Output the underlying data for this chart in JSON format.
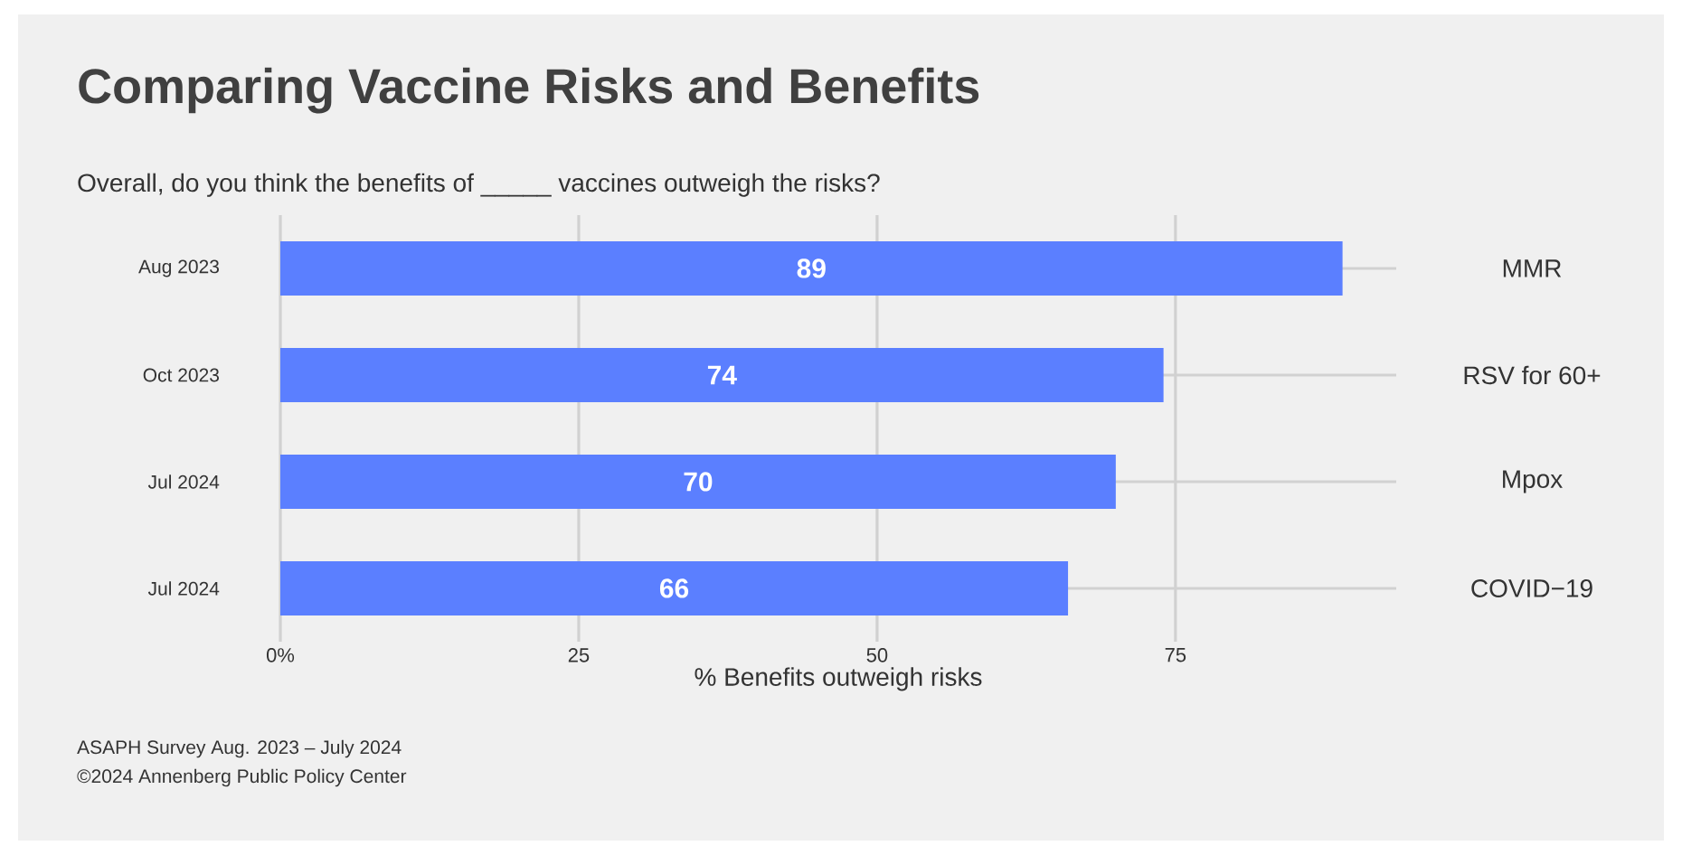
{
  "chart_data": {
    "type": "bar",
    "orientation": "horizontal",
    "title": "Comparing Vaccine Risks and Benefits",
    "subtitle": "Overall, do you think the benefits of _____ vaccines outweigh the risks?",
    "xlabel": "% Benefits outweigh risks",
    "categories": [
      "MMR",
      "RSV for 60+",
      "Mpox",
      "COVID−19"
    ],
    "values": [
      89,
      74,
      70,
      66
    ],
    "color": "#5b7fff",
    "data_labels": true,
    "xlim": [
      0,
      93.5
    ],
    "xticks": [
      {
        "value": 0,
        "label": "0%"
      },
      25,
      50,
      75
    ],
    "grid": true,
    "annotations": [
      "Aug 2023",
      "Oct 2023",
      "Jul 2024",
      "Jul 2024",
      "ASAPH Survey Aug. 2023 – July 2024",
      "©2024 Annenberg Public Policy Center"
    ]
  }
}
